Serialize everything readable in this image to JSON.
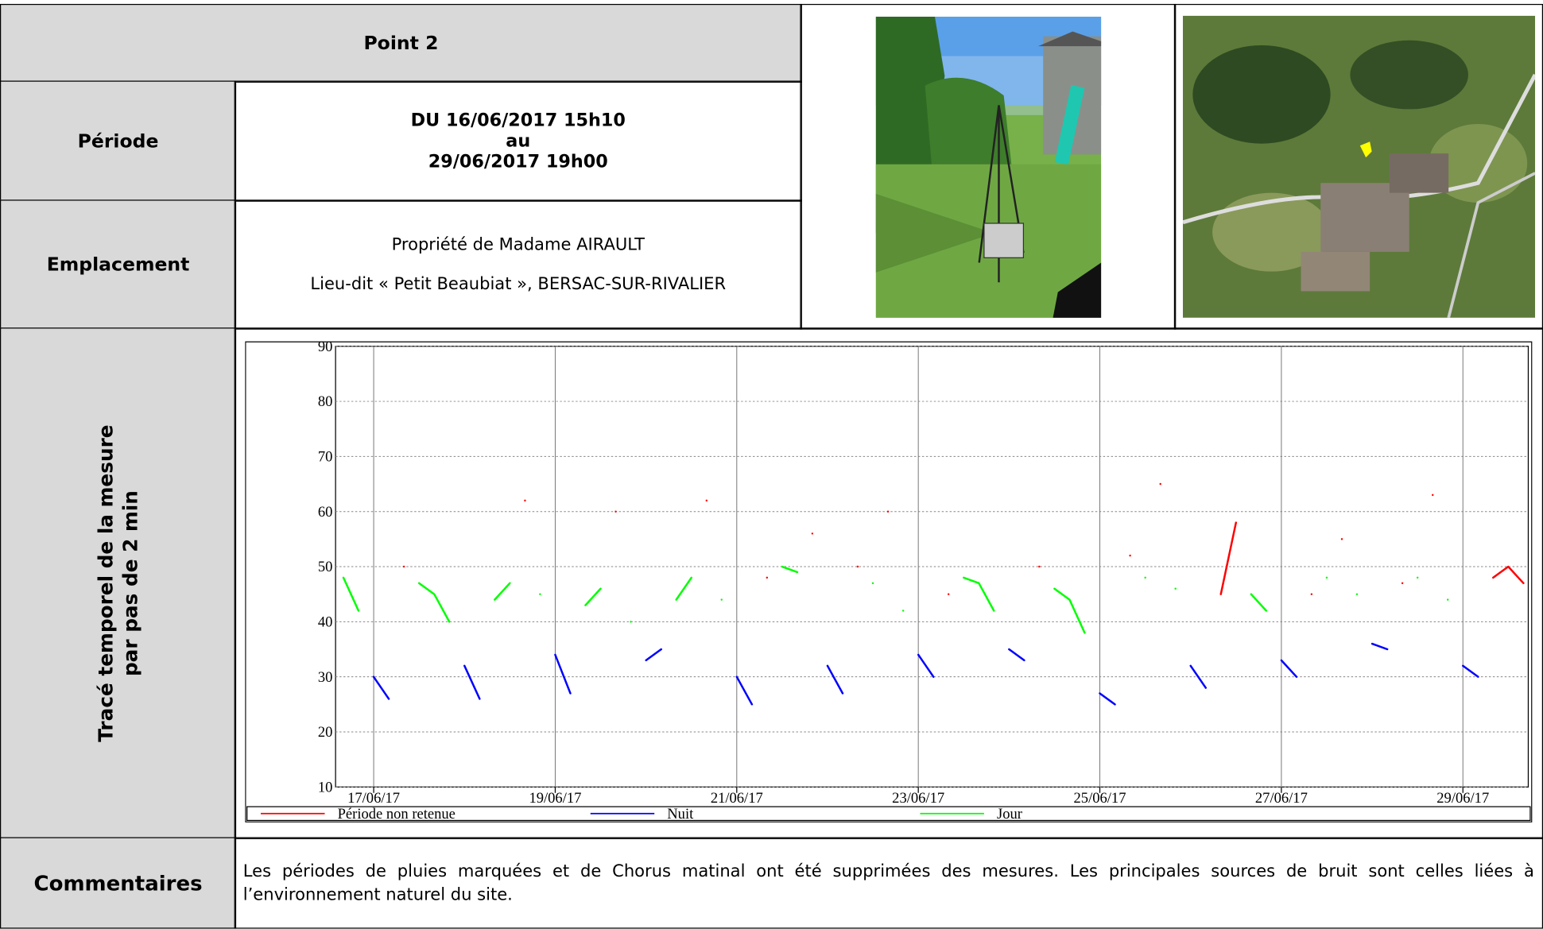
{
  "header": {
    "title": "Point 2"
  },
  "period": {
    "label": "Période",
    "lines": [
      "DU 16/06/2017 15h10",
      "au",
      "29/06/2017 19h00"
    ]
  },
  "location": {
    "label": "Emplacement",
    "lines": [
      "Propriété de Madame AIRAULT",
      "Lieu-dit « Petit Beaubiat », BERSAC-SUR-RIVALIER"
    ]
  },
  "chart_label": {
    "lines": [
      "Tracé temporel de la mesure",
      "par pas de 2 min"
    ]
  },
  "chart_data": {
    "type": "line",
    "x": [
      16.667,
      16.833,
      17,
      17.167,
      17.333,
      17.5,
      17.667,
      17.833,
      18,
      18.167,
      18.333,
      18.5,
      18.667,
      18.833,
      19,
      19.167,
      19.333,
      19.5,
      19.667,
      19.833,
      20,
      20.167,
      20.333,
      20.5,
      20.667,
      20.833,
      21,
      21.167,
      21.333,
      21.5,
      21.667,
      21.833,
      22,
      22.167,
      22.333,
      22.5,
      22.667,
      22.833,
      23,
      23.167,
      23.333,
      23.5,
      23.667,
      23.833,
      24,
      24.167,
      24.333,
      24.5,
      24.667,
      24.833,
      25,
      25.167,
      25.333,
      25.5,
      25.667,
      25.833,
      26,
      26.167,
      26.333,
      26.5,
      26.667,
      26.833,
      27,
      27.167,
      27.333,
      27.5,
      27.667,
      27.833,
      28,
      28.167,
      28.333,
      28.5,
      28.667,
      28.833,
      29,
      29.167,
      29.333,
      29.5,
      29.667
    ],
    "xlim": [
      16.58,
      29.72
    ],
    "xticks": [
      {
        "value": 17,
        "label": "17/06/17"
      },
      {
        "value": 19,
        "label": "19/06/17"
      },
      {
        "value": 21,
        "label": "21/06/17"
      },
      {
        "value": 23,
        "label": "23/06/17"
      },
      {
        "value": 25,
        "label": "25/06/17"
      },
      {
        "value": 27,
        "label": "27/06/17"
      },
      {
        "value": 29,
        "label": "29/06/17"
      }
    ],
    "ylim": [
      10,
      90
    ],
    "yticks": [
      10,
      20,
      30,
      40,
      50,
      60,
      70,
      80,
      90
    ],
    "grid": true,
    "legend": "bottom",
    "series": [
      {
        "name": "Période non retenue",
        "color": "#ff0000",
        "values": [
          null,
          null,
          null,
          null,
          50,
          null,
          null,
          null,
          null,
          null,
          null,
          null,
          62,
          null,
          null,
          null,
          null,
          null,
          60,
          null,
          null,
          null,
          null,
          null,
          62,
          null,
          null,
          null,
          48,
          null,
          null,
          56,
          null,
          null,
          50,
          null,
          60,
          null,
          null,
          null,
          45,
          null,
          null,
          null,
          null,
          null,
          50,
          null,
          null,
          null,
          null,
          null,
          52,
          null,
          65,
          null,
          null,
          null,
          45,
          58,
          null,
          null,
          null,
          null,
          45,
          null,
          55,
          null,
          null,
          null,
          47,
          null,
          63,
          null,
          null,
          null,
          48,
          50,
          47
        ]
      },
      {
        "name": "Nuit",
        "color": "#0000ff",
        "values": [
          null,
          null,
          30,
          26,
          null,
          null,
          null,
          null,
          32,
          26,
          null,
          null,
          null,
          null,
          34,
          27,
          null,
          null,
          null,
          null,
          33,
          35,
          null,
          null,
          null,
          null,
          30,
          25,
          null,
          null,
          null,
          null,
          32,
          27,
          null,
          null,
          null,
          null,
          34,
          30,
          null,
          null,
          null,
          null,
          35,
          33,
          null,
          null,
          null,
          null,
          27,
          25,
          null,
          null,
          null,
          null,
          32,
          28,
          null,
          null,
          null,
          null,
          33,
          30,
          null,
          null,
          null,
          null,
          36,
          35,
          null,
          null,
          null,
          null,
          32,
          30,
          null,
          null,
          null
        ]
      },
      {
        "name": "Jour",
        "color": "#00ff00",
        "values": [
          48,
          42,
          null,
          null,
          null,
          47,
          45,
          40,
          null,
          null,
          44,
          47,
          null,
          45,
          null,
          null,
          43,
          46,
          null,
          40,
          null,
          null,
          44,
          48,
          null,
          44,
          null,
          null,
          null,
          50,
          49,
          null,
          null,
          null,
          null,
          47,
          null,
          42,
          null,
          null,
          null,
          48,
          47,
          42,
          null,
          null,
          null,
          46,
          44,
          38,
          null,
          null,
          null,
          48,
          null,
          46,
          null,
          null,
          null,
          null,
          45,
          42,
          null,
          null,
          null,
          48,
          null,
          45,
          null,
          null,
          null,
          48,
          null,
          44,
          null,
          null,
          null,
          null,
          null
        ]
      }
    ]
  },
  "comments": {
    "label": "Commentaires",
    "text": "Les périodes de pluies marquées et de Chorus matinal ont été supprimées des mesures. Les principales sources de bruit sont celles liées à l’environnement naturel du site."
  }
}
